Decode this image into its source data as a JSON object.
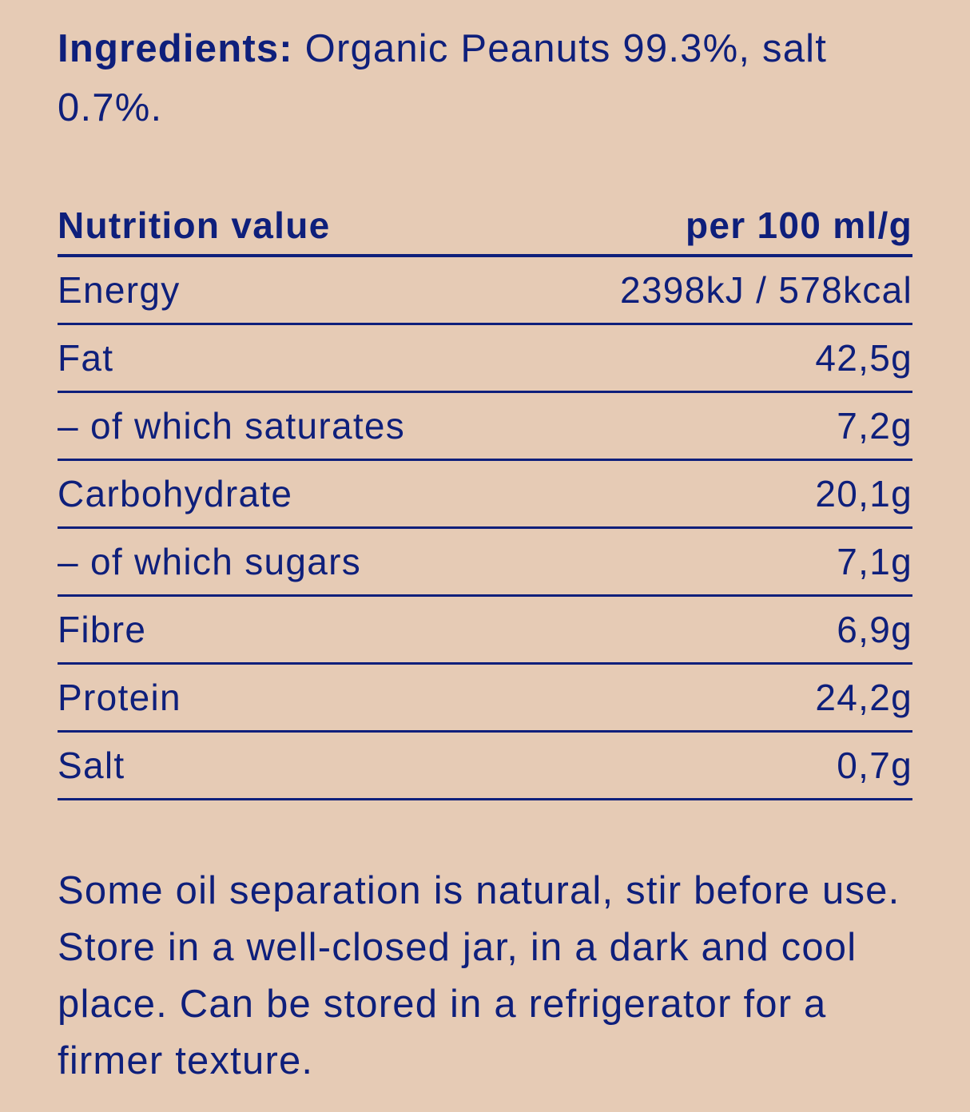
{
  "ingredients": {
    "label": "Ingredients:",
    "text": " Organic Peanuts 99.3%, salt 0.7%."
  },
  "nutrition": {
    "header": {
      "name": "Nutrition value",
      "value": "per 100 ml/g"
    },
    "rows": [
      {
        "name": "Energy",
        "value": "2398kJ / 578kcal"
      },
      {
        "name": "Fat",
        "value": "42,5g"
      },
      {
        "name": "– of which saturates",
        "value": "7,2g"
      },
      {
        "name": "Carbohydrate",
        "value": "20,1g"
      },
      {
        "name": "– of which sugars",
        "value": "7,1g"
      },
      {
        "name": "Fibre",
        "value": "6,9g"
      },
      {
        "name": "Protein",
        "value": "24,2g"
      },
      {
        "name": "Salt",
        "value": "0,7g"
      }
    ]
  },
  "storage_note": "Some oil separation is natural, stir before use. Store in a well-closed jar, in a dark and cool place. Can be stored in a refrigerator for a firmer texture.",
  "colors": {
    "background": "#E6CBB5",
    "text": "#0E1F7B"
  }
}
